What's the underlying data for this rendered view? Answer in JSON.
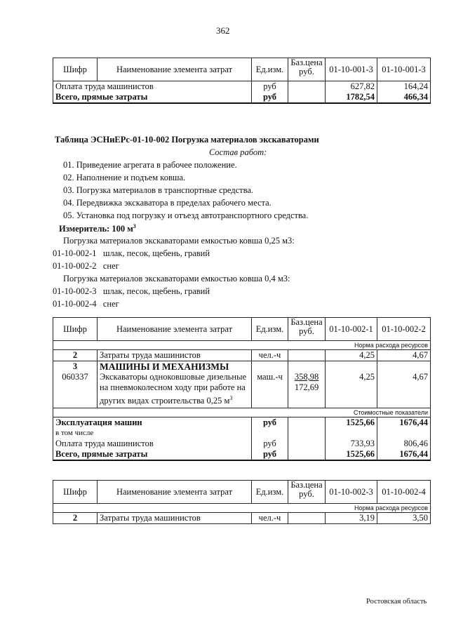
{
  "page_number": "362",
  "headers": {
    "code": "Шифр",
    "name": "Наименование элемента затрат",
    "unit": "Ед.изм.",
    "base_price": "Баз.цена руб."
  },
  "table1": {
    "cols": [
      "01-10-001-3",
      "01-10-001-3"
    ],
    "rows": [
      {
        "name": "Оплата труда машинистов",
        "unit": "руб",
        "v1": "627,82",
        "v2": "164,24"
      },
      {
        "name": "Всего, прямые затраты",
        "unit": "руб",
        "v1": "1782,54",
        "v2": "466,34"
      }
    ]
  },
  "section": {
    "title": "Таблица  ЭСНиЕРс-01-10-002  Погрузка материалов экскаваторами",
    "composition": "Состав работ:",
    "steps": [
      "01. Приведение агрегата в рабочее положение.",
      "02. Наполнение и подъем ковша.",
      "03. Погрузка материалов в транспортные средства.",
      "04. Передвижка экскаватора в пределах рабочего места.",
      "05. Установка под погрузку и отъезд автотранспортного средства."
    ],
    "measure": "Измеритель: 100 м",
    "measure_sup": "3",
    "group1": "Погрузка материалов экскаваторами емкостью ковша 0,25 м3:",
    "items1": [
      {
        "code": "01-10-002-1",
        "text": "шлак, песок, щебень, гравий"
      },
      {
        "code": "01-10-002-2",
        "text": "снег"
      }
    ],
    "group2": "Погрузка материалов экскаваторами емкостью ковша 0,4 м3:",
    "items2": [
      {
        "code": "01-10-002-3",
        "text": "шлак, песок, щебень, гравий"
      },
      {
        "code": "01-10-002-4",
        "text": "снег"
      }
    ]
  },
  "table2": {
    "cols": [
      "01-10-002-1",
      "01-10-002-2"
    ],
    "norm_label": "Норма расхода ресурсов",
    "cost_label": "Стоимостные показатели",
    "labor": {
      "code": "2",
      "name": "Затраты труда машинистов",
      "unit": "чел.-ч",
      "v1": "4,25",
      "v2": "4,67"
    },
    "machines": {
      "code": "3",
      "title": "МАШИНЫ И МЕХАНИЗМЫ",
      "subcode": "060337",
      "name1": "Экскаваторы одноковшовые дизельные",
      "name2": "на пневмоколесном ходу при работе на",
      "name3": "других видах строительства 0,25 м",
      "sup": "3",
      "unit": "маш.-ч",
      "price1": "358,98",
      "price2": "172,69",
      "v1": "4,25",
      "v2": "4,67"
    },
    "rows": [
      {
        "name": "Эксплуатация машин",
        "unit": "руб",
        "v1": "1525,66",
        "v2": "1676,44"
      },
      {
        "name": "в том числе",
        "unit": "",
        "v1": "",
        "v2": ""
      },
      {
        "name": "Оплата труда машинистов",
        "unit": "руб",
        "v1": "733,93",
        "v2": "806,46"
      },
      {
        "name": "Всего, прямые затраты",
        "unit": "руб",
        "v1": "1525,66",
        "v2": "1676,44"
      }
    ]
  },
  "table3": {
    "cols": [
      "01-10-002-3",
      "01-10-002-4"
    ],
    "norm_label": "Норма расхода ресурсов",
    "labor": {
      "code": "2",
      "name": "Затраты труда машинистов",
      "unit": "чел.-ч",
      "v1": "3,19",
      "v2": "3,50"
    }
  },
  "footer": "Ростовская область"
}
